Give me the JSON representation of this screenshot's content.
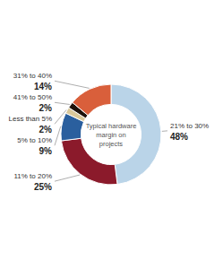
{
  "chart_data": {
    "type": "donut",
    "title": "Typical hardware\nmargin on\nprojects",
    "categories": [
      "21% to 30%",
      "11% to 20%",
      "5% to 10%",
      "Less than 5%",
      "41% to 50%",
      "31% to 40%"
    ],
    "values": [
      48,
      25,
      9,
      2,
      2,
      14
    ],
    "value_labels": [
      "48%",
      "25%",
      "9%",
      "2%",
      "2%",
      "14%"
    ],
    "colors": [
      "#bad4e8",
      "#8b1a2b",
      "#2a5f9e",
      "#d9c89a",
      "#1e120a",
      "#d95f3b"
    ],
    "data_labels": true
  }
}
